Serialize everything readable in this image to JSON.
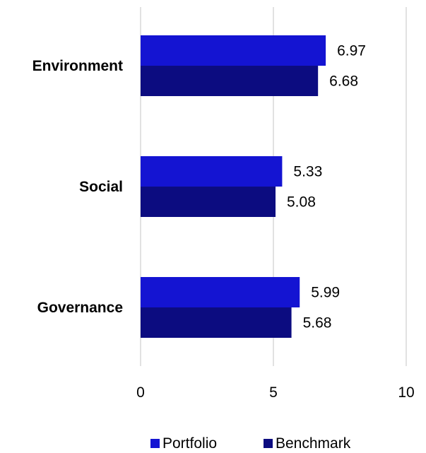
{
  "chart_data": {
    "type": "bar",
    "orientation": "horizontal",
    "categories": [
      "Environment",
      "Social",
      "Governance"
    ],
    "series": [
      {
        "name": "Portfolio",
        "values": [
          6.97,
          5.33,
          5.99
        ],
        "color": "#1414d2"
      },
      {
        "name": "Benchmark",
        "values": [
          6.68,
          5.08,
          5.68
        ],
        "color": "#0c0c80"
      }
    ],
    "xlim": [
      0,
      10
    ],
    "xticks": [
      "0",
      "5",
      "10"
    ],
    "grid": "vertical",
    "legend": "bottom",
    "data_labels": true
  }
}
